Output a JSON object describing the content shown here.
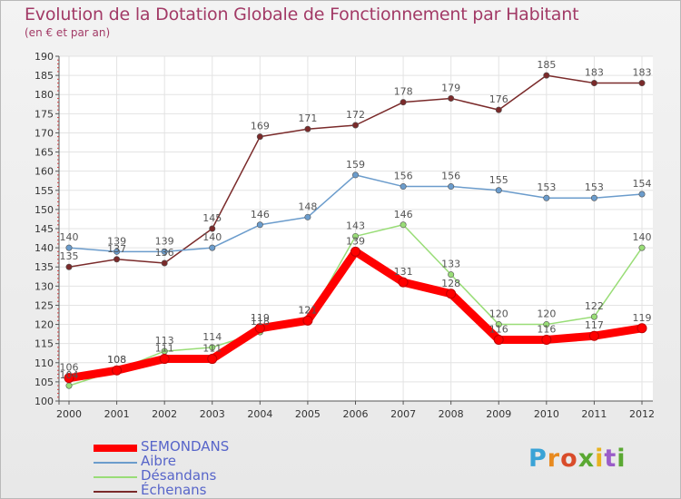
{
  "title": "Evolution de la Dotation Globale de Fonctionnement par Habitant",
  "subtitle": "(en € et par an)",
  "logo": {
    "text": "Proxiti"
  },
  "chart_data": {
    "type": "line",
    "title": "Evolution de la Dotation Globale de Fonctionnement par Habitant",
    "subtitle": "(en € et par an)",
    "xlabel": "",
    "ylabel": "",
    "x": [
      "2000",
      "2001",
      "2002",
      "2003",
      "2004",
      "2005",
      "2006",
      "2007",
      "2008",
      "2009",
      "2010",
      "2011",
      "2012"
    ],
    "ylim": [
      100,
      190
    ],
    "yticks": [
      100,
      105,
      110,
      115,
      120,
      125,
      130,
      135,
      140,
      145,
      150,
      155,
      160,
      165,
      170,
      175,
      180,
      185,
      190
    ],
    "grid": true,
    "legend_position": "bottom-left",
    "series": [
      {
        "name": "SEMONDANS",
        "color": "#ff0000",
        "values": [
          106,
          108,
          111,
          111,
          119,
          121,
          139,
          131,
          128,
          116,
          116,
          117,
          119
        ],
        "labels": [
          "106",
          "108",
          "111",
          "111",
          "119",
          "121",
          "139",
          "131",
          "128",
          "116",
          "116",
          "117",
          "119"
        ]
      },
      {
        "name": "Aibre",
        "color": "#6b9ccc",
        "values": [
          140,
          139,
          139,
          140,
          146,
          148,
          159,
          156,
          156,
          155,
          153,
          153,
          154
        ],
        "labels": [
          "140",
          "139",
          "139",
          "140",
          "146",
          "148",
          "159",
          "156",
          "156",
          "155",
          "153",
          "153",
          "154"
        ]
      },
      {
        "name": "Désandans",
        "color": "#99dd77",
        "values": [
          104,
          108,
          113,
          114,
          118,
          121,
          143,
          146,
          133,
          120,
          120,
          122,
          140
        ],
        "labels": [
          "104",
          "108",
          "113",
          "114",
          "118",
          "121",
          "143",
          "146",
          "133",
          "120",
          "120",
          "122",
          "140"
        ]
      },
      {
        "name": "Échenans",
        "color": "#7a2a2a",
        "values": [
          135,
          137,
          136,
          145,
          169,
          171,
          172,
          178,
          179,
          176,
          185,
          183,
          183
        ],
        "labels": [
          "135",
          "137",
          "136",
          "145",
          "169",
          "171",
          "172",
          "178",
          "179",
          "176",
          "185",
          "183",
          "183"
        ]
      }
    ]
  }
}
